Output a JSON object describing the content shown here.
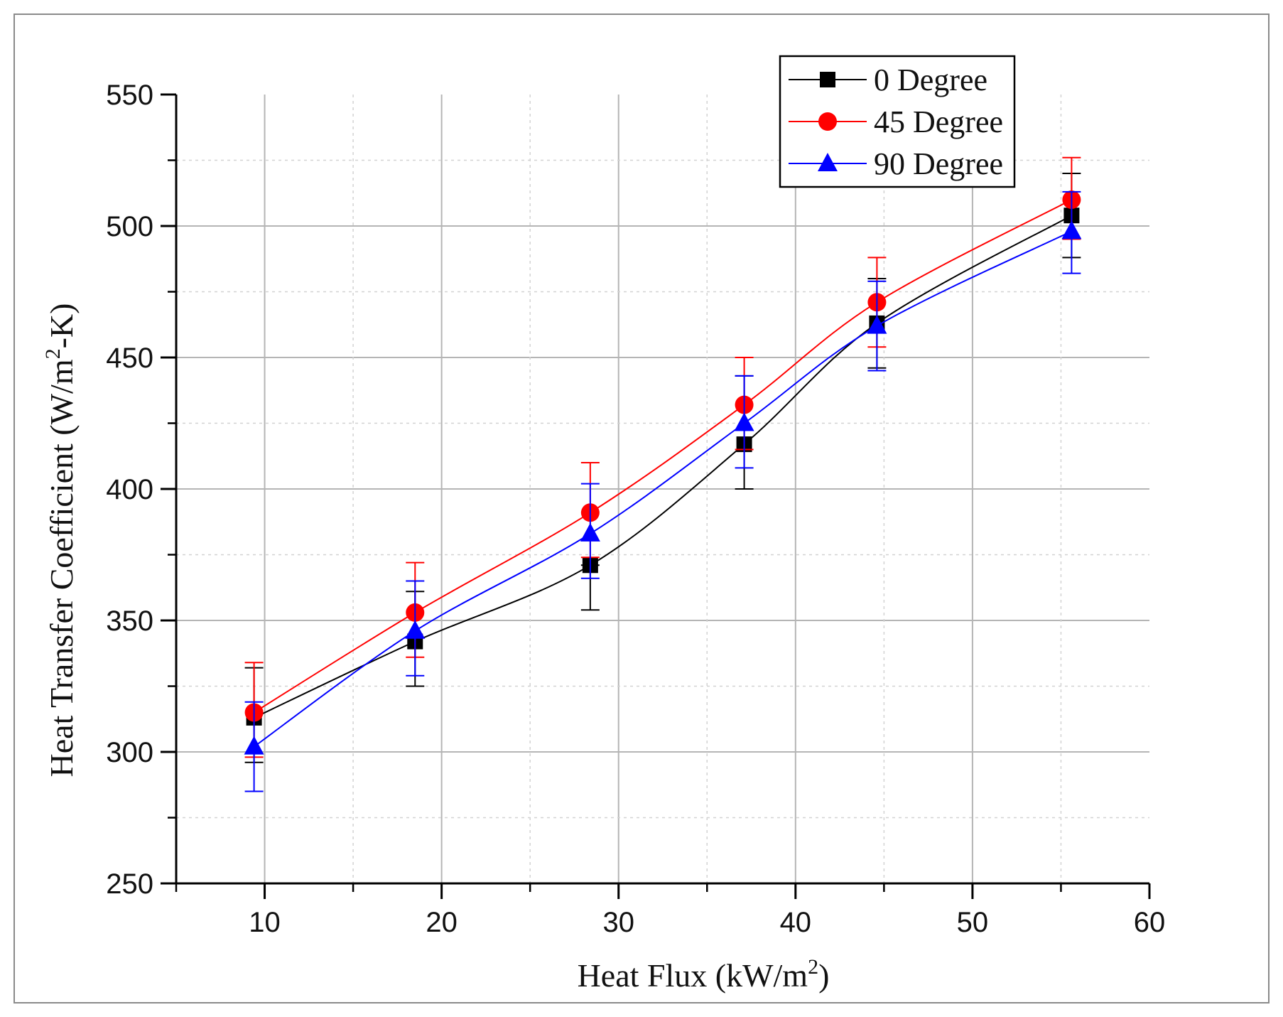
{
  "chart_data": {
    "type": "line",
    "xlabel": "Heat Flux (kW/m",
    "xlabel_sup": "2",
    "xlabel_tail": ")",
    "ylabel": "Heat Transfer Coefficient (W/m",
    "ylabel_sup": "2",
    "ylabel_tail": "-K)",
    "xlim": [
      5,
      60
    ],
    "ylim": [
      250,
      550
    ],
    "x_ticks": [
      10,
      20,
      30,
      40,
      50,
      60
    ],
    "y_ticks": [
      250,
      300,
      350,
      400,
      450,
      500,
      550
    ],
    "x_minor": [
      5,
      15,
      25,
      35,
      45,
      55
    ],
    "y_minor": [
      275,
      325,
      375,
      425,
      475,
      525
    ],
    "grid": true,
    "legend_position": "top-right",
    "series": [
      {
        "name": "0 Degree",
        "color": "#000000",
        "marker": "square",
        "x": [
          9.4,
          18.5,
          28.4,
          37.1,
          44.6,
          55.6
        ],
        "y": [
          313,
          342,
          371,
          417,
          463,
          504
        ],
        "err_low": [
          17,
          17,
          17,
          17,
          17,
          16
        ],
        "err_high": [
          19,
          19,
          0,
          26,
          17,
          16
        ]
      },
      {
        "name": "45 Degree",
        "color": "#ff0000",
        "marker": "circle",
        "x": [
          9.4,
          18.5,
          28.4,
          37.1,
          44.6,
          55.6
        ],
        "y": [
          315,
          353,
          391,
          432,
          471,
          510
        ],
        "err_low": [
          17,
          17,
          17,
          17,
          17,
          15
        ],
        "err_high": [
          19,
          19,
          19,
          18,
          17,
          16
        ]
      },
      {
        "name": "90 Degree",
        "color": "#0000ff",
        "marker": "triangle",
        "x": [
          9.4,
          18.5,
          28.4,
          37.1,
          44.6,
          55.6
        ],
        "y": [
          302,
          346,
          383,
          425,
          462,
          498
        ],
        "err_low": [
          17,
          17,
          17,
          17,
          17,
          16
        ],
        "err_high": [
          17,
          19,
          19,
          18,
          17,
          15
        ]
      }
    ]
  }
}
